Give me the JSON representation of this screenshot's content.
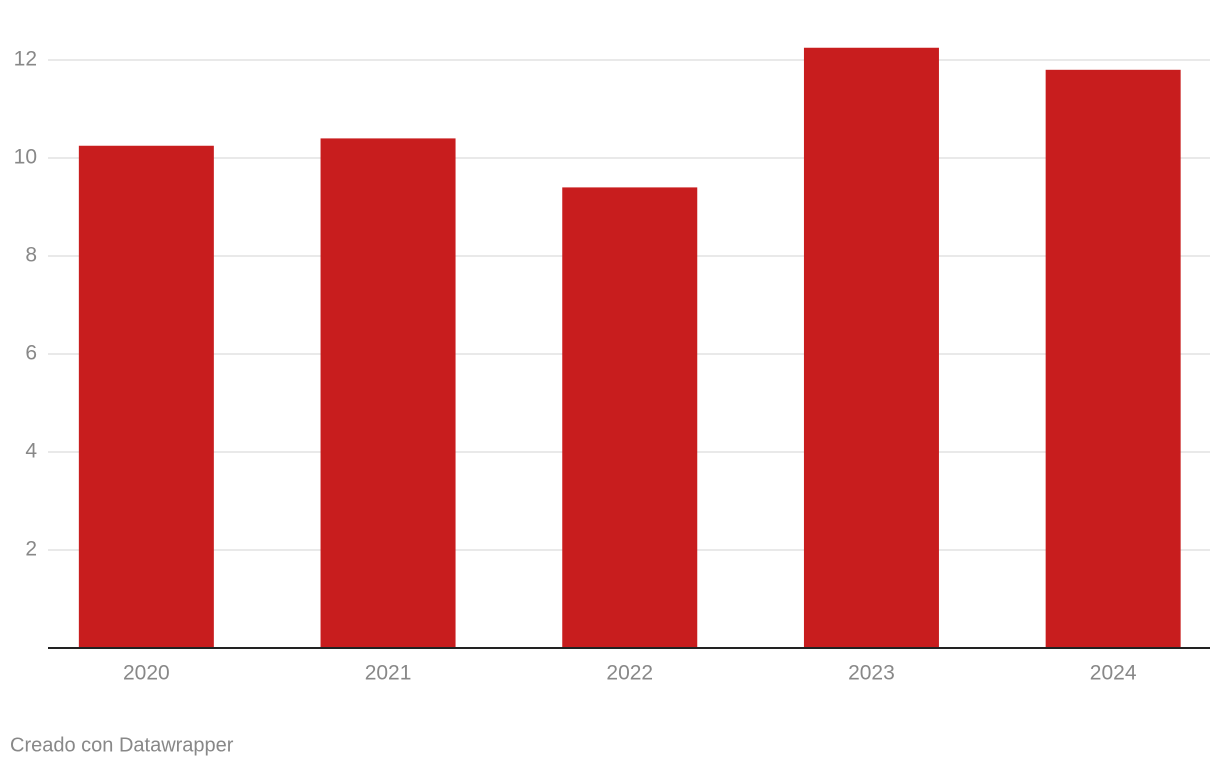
{
  "chart_data": {
    "type": "bar",
    "categories": [
      "2020",
      "2021",
      "2022",
      "2023",
      "2024"
    ],
    "values": [
      10.25,
      10.4,
      9.4,
      12.25,
      11.8
    ],
    "color": "#c81d1e",
    "ylim": [
      0,
      12.5
    ],
    "yticks": [
      2,
      4,
      6,
      8,
      10,
      12
    ],
    "grid": true,
    "credit": "Creado con Datawrapper"
  }
}
